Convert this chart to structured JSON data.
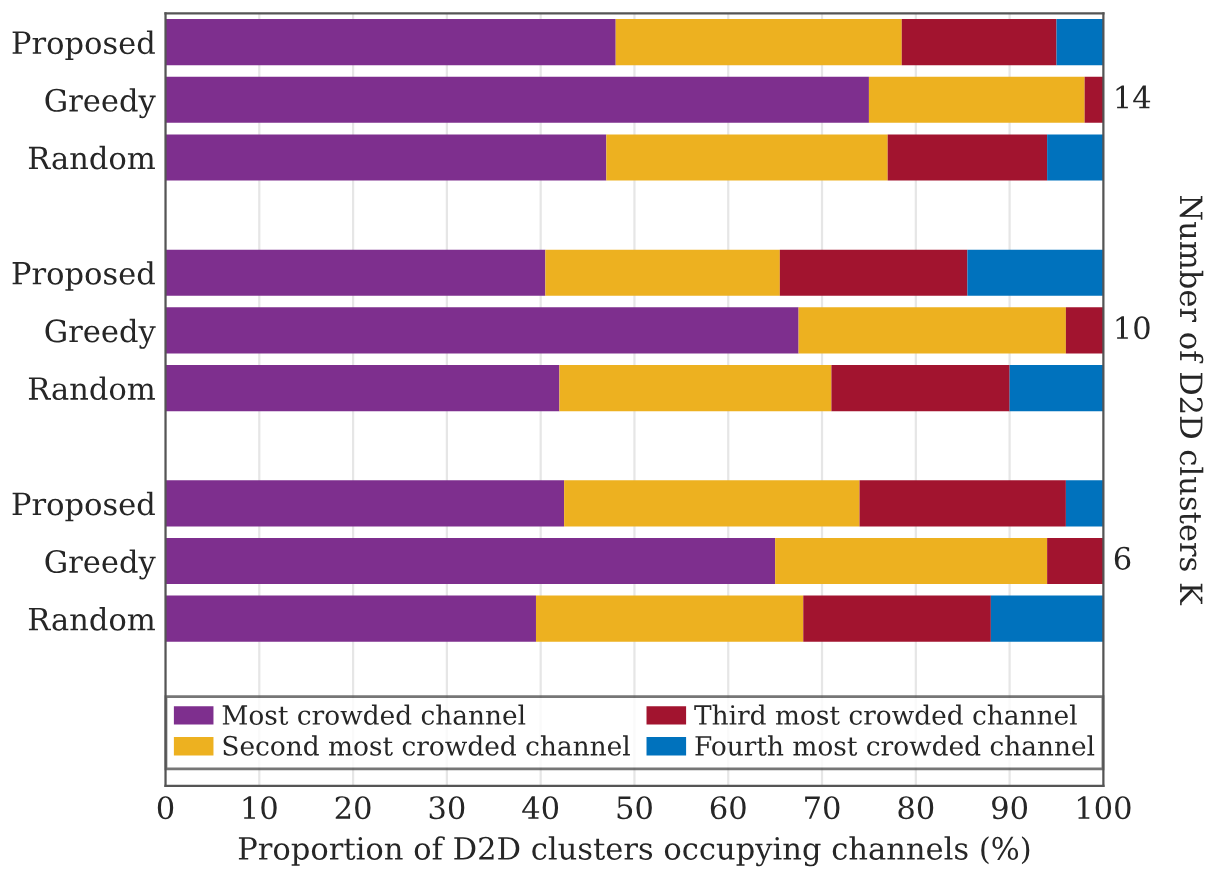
{
  "chart_data": {
    "type": "bar",
    "orientation": "horizontal",
    "stacked": true,
    "categories": [
      "Proposed",
      "Greedy",
      "Random",
      null,
      "Proposed",
      "Greedy",
      "Random",
      null,
      "Proposed",
      "Greedy",
      "Random"
    ],
    "series": [
      {
        "name": "Most crowded channel",
        "color": "#7e2f8e",
        "values": [
          48,
          75,
          47,
          null,
          40.5,
          67.5,
          42,
          null,
          42.5,
          65,
          39.5
        ]
      },
      {
        "name": "Second most crowded channel",
        "color": "#edb120",
        "values": [
          30.5,
          23,
          30,
          null,
          25,
          28.5,
          29,
          null,
          31.5,
          29,
          28.5
        ]
      },
      {
        "name": "Third most crowded channel",
        "color": "#a2142f",
        "values": [
          16.5,
          2,
          17,
          null,
          20,
          4,
          19,
          null,
          22,
          6,
          20
        ]
      },
      {
        "name": "Fourth most crowded channel",
        "color": "#0072bd",
        "values": [
          5,
          0,
          6,
          null,
          14.5,
          0,
          10,
          null,
          4,
          0,
          12
        ]
      }
    ],
    "xlabel": "Proportion of D2D clusters occupying channels (%)",
    "y2label": "Number of D2D clusters K",
    "annotations": [
      "14",
      "10",
      "6"
    ],
    "xlim": [
      0,
      100
    ],
    "xticks": [
      0,
      10,
      20,
      30,
      40,
      50,
      60,
      70,
      80,
      90,
      100
    ],
    "grid": "x",
    "legend": "bottom"
  }
}
